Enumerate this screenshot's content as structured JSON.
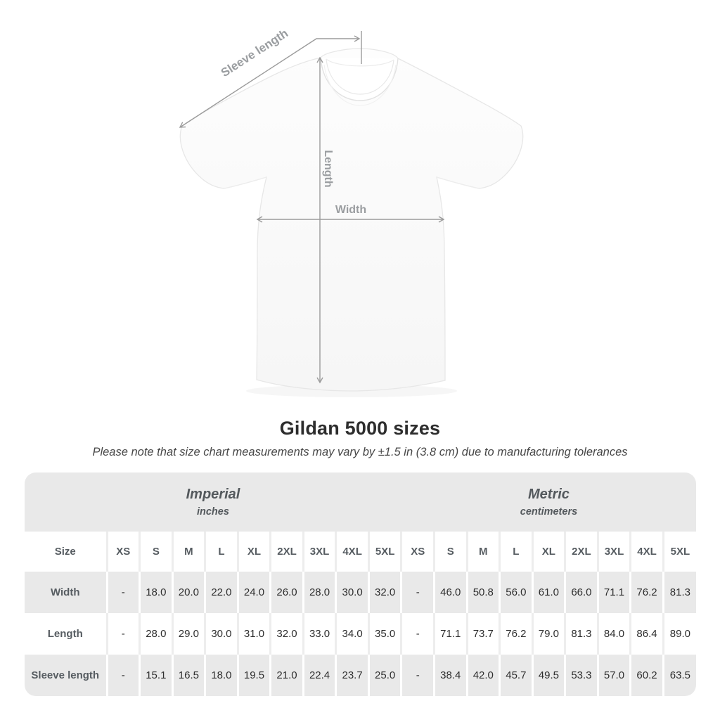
{
  "caption": {
    "title": "Gildan 5000 sizes",
    "subtitle": "Please note that size chart measurements may vary by ±1.5 in (3.8 cm) due to manufacturing tolerances"
  },
  "diagram": {
    "labels": {
      "sleeve_length": "Sleeve length",
      "length": "Length",
      "width": "Width"
    },
    "colors": {
      "annotation": "#9b9b9b",
      "label_text": "#9a9da0",
      "shirt_outline": "#e7e7e7"
    }
  },
  "chart_data": {
    "type": "table",
    "title": "Gildan 5000 sizes",
    "size_label": "Size",
    "sizes": [
      "XS",
      "S",
      "M",
      "L",
      "XL",
      "2XL",
      "3XL",
      "4XL",
      "5XL"
    ],
    "unit_groups": [
      {
        "label": "Imperial",
        "sublabel": "inches"
      },
      {
        "label": "Metric",
        "sublabel": "centimeters"
      }
    ],
    "rows": [
      {
        "label": "Width",
        "imperial": [
          "-",
          "18.0",
          "20.0",
          "22.0",
          "24.0",
          "26.0",
          "28.0",
          "30.0",
          "32.0"
        ],
        "metric": [
          "-",
          "46.0",
          "50.8",
          "56.0",
          "61.0",
          "66.0",
          "71.1",
          "76.2",
          "81.3"
        ]
      },
      {
        "label": "Length",
        "imperial": [
          "-",
          "28.0",
          "29.0",
          "30.0",
          "31.0",
          "32.0",
          "33.0",
          "34.0",
          "35.0"
        ],
        "metric": [
          "-",
          "71.1",
          "73.7",
          "76.2",
          "79.0",
          "81.3",
          "84.0",
          "86.4",
          "89.0"
        ]
      },
      {
        "label": "Sleeve length",
        "imperial": [
          "-",
          "15.1",
          "16.5",
          "18.0",
          "19.5",
          "21.0",
          "22.4",
          "23.7",
          "25.0"
        ],
        "metric": [
          "-",
          "38.4",
          "42.0",
          "45.7",
          "49.5",
          "53.3",
          "57.0",
          "60.2",
          "63.5"
        ]
      }
    ]
  }
}
